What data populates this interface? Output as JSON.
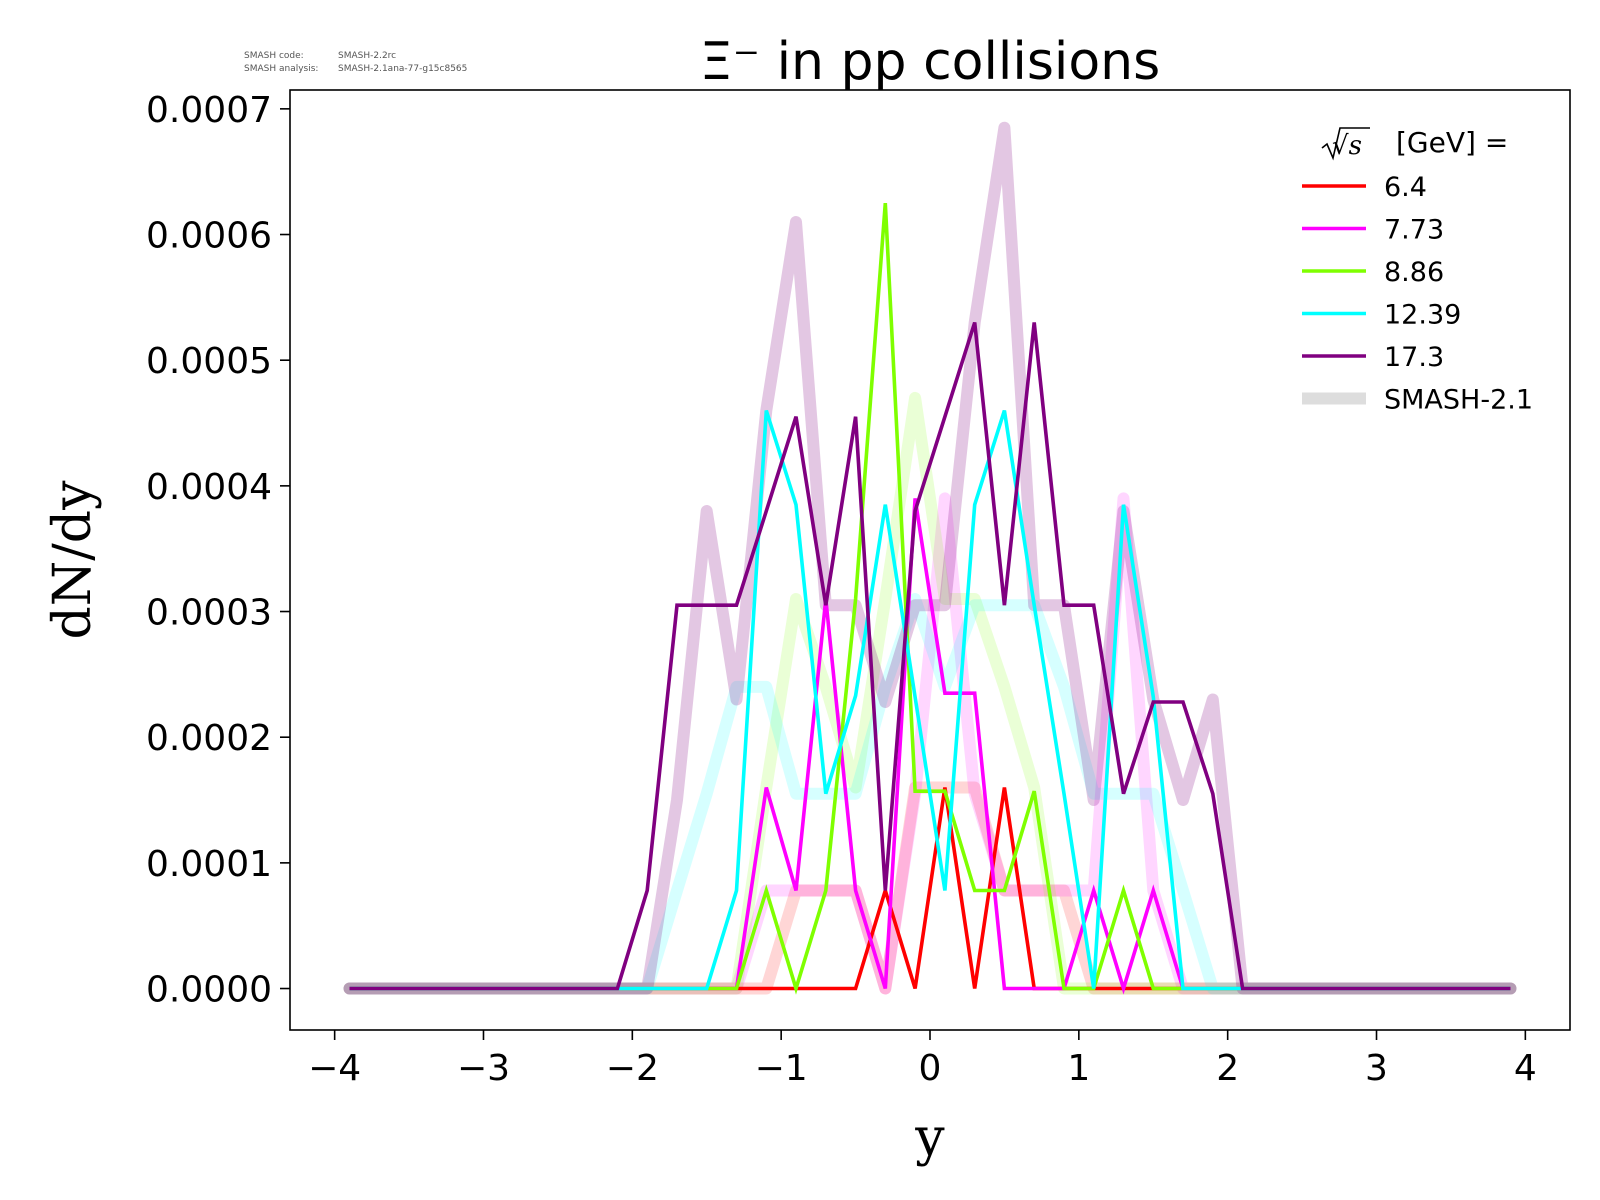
{
  "header": {
    "smash_code_label": "SMASH code:",
    "smash_code_value": "SMASH-2.2rc",
    "smash_analysis_label": "SMASH analysis:",
    "smash_analysis_value": "SMASH-2.1ana-77-g15c8565"
  },
  "chart_data": {
    "type": "line",
    "title": "Ξ⁻ in pp collisions",
    "xlabel": "y",
    "ylabel": "dN/dy",
    "xlim": [
      -4.3,
      4.3
    ],
    "ylim": [
      -3.3e-05,
      0.000715
    ],
    "xticks": [
      -4,
      -3,
      -2,
      -1,
      0,
      1,
      2,
      3,
      4
    ],
    "xtick_labels": [
      "−4",
      "−3",
      "−2",
      "−1",
      "0",
      "1",
      "2",
      "3",
      "4"
    ],
    "yticks": [
      0.0,
      0.0001,
      0.0002,
      0.0003,
      0.0004,
      0.0005,
      0.0006,
      0.0007
    ],
    "ytick_labels": [
      "0.0000",
      "0.0001",
      "0.0002",
      "0.0003",
      "0.0004",
      "0.0005",
      "0.0006",
      "0.0007"
    ],
    "grid": false,
    "legend": {
      "position": "top-right",
      "title_prefix": "√s",
      "title_suffix": "[GeV] =",
      "entries": [
        "6.4",
        "7.73",
        "8.86",
        "12.39",
        "17.3",
        "SMASH-2.1"
      ],
      "colors": [
        "#ff0000",
        "#ff00ff",
        "#7fff00",
        "#00ffff",
        "#800080",
        "#dddddd"
      ]
    },
    "x": [
      -3.9,
      -3.7,
      -3.5,
      -3.3,
      -3.1,
      -2.9,
      -2.7,
      -2.5,
      -2.3,
      -2.1,
      -1.9,
      -1.7,
      -1.5,
      -1.3,
      -1.1,
      -0.9,
      -0.7,
      -0.5,
      -0.3,
      -0.1,
      0.1,
      0.3,
      0.5,
      0.7,
      0.9,
      1.1,
      1.3,
      1.5,
      1.7,
      1.9,
      2.1,
      2.3,
      2.5,
      2.7,
      2.9,
      3.1,
      3.3,
      3.5,
      3.7,
      3.9
    ],
    "series": [
      {
        "name": "6.4",
        "color": "#ff0000",
        "values": [
          0,
          0,
          0,
          0,
          0,
          0,
          0,
          0,
          0,
          0,
          0,
          0,
          0,
          0,
          0,
          0,
          0,
          0,
          7.8e-05,
          0,
          0.00016,
          0,
          0.00016,
          0,
          0,
          0,
          0,
          0,
          0,
          0,
          0,
          0,
          0,
          0,
          0,
          0,
          0,
          0,
          0,
          0
        ]
      },
      {
        "name": "7.73",
        "color": "#ff00ff",
        "values": [
          0,
          0,
          0,
          0,
          0,
          0,
          0,
          0,
          0,
          0,
          0,
          0,
          0,
          0,
          0.00016,
          7.8e-05,
          0.00031,
          7.8e-05,
          0,
          0.00039,
          0.000235,
          0.000235,
          0,
          0,
          0,
          7.8e-05,
          0,
          7.8e-05,
          0,
          0,
          0,
          0,
          0,
          0,
          0,
          0,
          0,
          0,
          0,
          0
        ]
      },
      {
        "name": "8.86",
        "color": "#7fff00",
        "values": [
          0,
          0,
          0,
          0,
          0,
          0,
          0,
          0,
          0,
          0,
          0,
          0,
          0,
          0,
          7.8e-05,
          0,
          7.8e-05,
          0.00031,
          0.000625,
          0.000157,
          0.000157,
          7.8e-05,
          7.8e-05,
          0.000157,
          0,
          0,
          7.8e-05,
          0,
          0,
          0,
          0,
          0,
          0,
          0,
          0,
          0,
          0,
          0,
          0,
          0
        ]
      },
      {
        "name": "12.39",
        "color": "#00ffff",
        "values": [
          0,
          0,
          0,
          0,
          0,
          0,
          0,
          0,
          0,
          0,
          0,
          0,
          0,
          7.8e-05,
          0.00046,
          0.000385,
          0.000155,
          0.000233,
          0.000385,
          0.000232,
          7.8e-05,
          0.000385,
          0.00046,
          0.000305,
          0.000155,
          0,
          0.000385,
          0.000232,
          0,
          0,
          0,
          0,
          0,
          0,
          0,
          0,
          0,
          0,
          0,
          0
        ]
      },
      {
        "name": "17.3",
        "color": "#800080",
        "values": [
          0,
          0,
          0,
          0,
          0,
          0,
          0,
          0,
          0,
          0,
          7.8e-05,
          0.000305,
          0.000305,
          0.000305,
          0.00038,
          0.000455,
          0.000305,
          0.000455,
          7.8e-05,
          0.00038,
          0.000455,
          0.00053,
          0.000305,
          0.00053,
          0.000305,
          0.000305,
          0.000155,
          0.000228,
          0.000228,
          0.000155,
          0,
          0,
          0,
          0,
          0,
          0,
          0,
          0,
          0,
          0
        ]
      }
    ],
    "reference_series": [
      {
        "name": "SMASH-2.1",
        "of": "6.4",
        "color": "#ff0000",
        "values": [
          0,
          0,
          0,
          0,
          0,
          0,
          0,
          0,
          0,
          0,
          0,
          0,
          0,
          0,
          0,
          7.8e-05,
          7.8e-05,
          7.8e-05,
          0,
          0.00016,
          0.00016,
          0.00016,
          7.8e-05,
          7.8e-05,
          7.8e-05,
          0,
          0,
          0,
          0,
          0,
          0,
          0,
          0,
          0,
          0,
          0,
          0,
          0,
          0,
          0
        ]
      },
      {
        "name": "SMASH-2.1",
        "of": "7.73",
        "color": "#ff00ff",
        "values": [
          0,
          0,
          0,
          0,
          0,
          0,
          0,
          0,
          0,
          0,
          0,
          0,
          0,
          0,
          7.8e-05,
          7.8e-05,
          7.8e-05,
          7.8e-05,
          0,
          0.000155,
          0.00039,
          0.000155,
          7.8e-05,
          7.8e-05,
          7.8e-05,
          7.8e-05,
          0.00039,
          7.8e-05,
          0,
          0,
          0,
          0,
          0,
          0,
          0,
          0,
          0,
          0,
          0,
          0
        ]
      },
      {
        "name": "SMASH-2.1",
        "of": "8.86",
        "color": "#7fff00",
        "values": [
          0,
          0,
          0,
          0,
          0,
          0,
          0,
          0,
          0,
          0,
          0,
          0,
          0,
          0,
          0.00016,
          0.00031,
          0.00024,
          0.00016,
          0.00031,
          0.00047,
          0.00031,
          0.00031,
          0.00024,
          0.00016,
          0,
          0,
          0,
          0,
          0,
          0,
          0,
          0,
          0,
          0,
          0,
          0,
          0,
          0,
          0,
          0
        ]
      },
      {
        "name": "SMASH-2.1",
        "of": "12.39",
        "color": "#00ffff",
        "values": [
          0,
          0,
          0,
          0,
          0,
          0,
          0,
          0,
          0,
          0,
          0,
          7.8e-05,
          0.000155,
          0.00024,
          0.00024,
          0.000155,
          0.000155,
          0.000155,
          0.00024,
          0.00031,
          0.00024,
          0.000305,
          0.000305,
          0.000305,
          0.00024,
          0.000155,
          0.000155,
          0.000155,
          7.8e-05,
          0,
          0,
          0,
          0,
          0,
          0,
          0,
          0,
          0,
          0,
          0
        ]
      },
      {
        "name": "SMASH-2.1",
        "of": "17.3",
        "color": "#800080",
        "values": [
          0,
          0,
          0,
          0,
          0,
          0,
          0,
          0,
          0,
          0,
          0,
          0.00015,
          0.00038,
          0.00023,
          0.00046,
          0.00061,
          0.000305,
          0.000305,
          0.000228,
          0.000305,
          0.000305,
          0.00053,
          0.000685,
          0.000305,
          0.000305,
          0.00015,
          0.00038,
          0.00023,
          0.00015,
          0.00023,
          0,
          0,
          0,
          0,
          0,
          0,
          0,
          0,
          0,
          0
        ]
      }
    ]
  }
}
